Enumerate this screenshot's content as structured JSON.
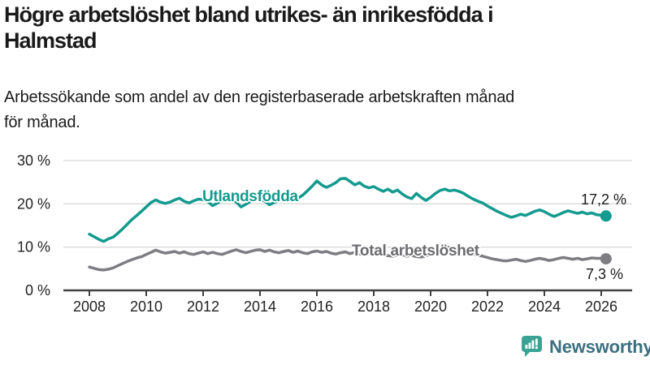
{
  "header": {
    "title_lines": [
      "Högre arbetslöshet bland utrikes- än inrikesfödda i",
      "Halmstad"
    ],
    "subtitle_lines": [
      "Arbetssökande som andel av den registerbaserade arbetskraften månad",
      "för månad."
    ]
  },
  "chart_data": {
    "type": "line",
    "x_start": 2008,
    "x_step_years": 0.16667,
    "x_tick_years": [
      2008,
      2010,
      2012,
      2014,
      2016,
      2018,
      2020,
      2022,
      2024,
      2026
    ],
    "x_tick_labels": [
      "2008",
      "2010",
      "2012",
      "2014",
      "2016",
      "2018",
      "2020",
      "2022",
      "2024",
      "2026"
    ],
    "y_ticks": [
      {
        "value": 0,
        "label": "0 %"
      },
      {
        "value": 10,
        "label": "10 %"
      },
      {
        "value": 20,
        "label": "20 %"
      },
      {
        "value": 30,
        "label": "30 %"
      }
    ],
    "ylim": [
      0,
      32
    ],
    "xlim": [
      2007.1,
      2026.6
    ],
    "grid": true,
    "legend_position": "inline-labels",
    "colors": {
      "grid": "#d9d9d9",
      "axis": "#404040",
      "tick_text": "#222222"
    },
    "series": [
      {
        "name": "Utlandsfödda",
        "color": "#149a8e",
        "label_color": "#149a8e",
        "end_label": "17,2 %",
        "end_value": 17.2,
        "values": [
          13.0,
          12.4,
          11.8,
          11.3,
          11.9,
          12.3,
          13.2,
          14.2,
          15.3,
          16.4,
          17.3,
          18.3,
          19.3,
          20.3,
          20.9,
          20.4,
          20.1,
          20.4,
          20.9,
          21.3,
          20.6,
          20.2,
          20.7,
          21.1,
          21.0,
          20.5,
          19.6,
          20.2,
          20.8,
          21.1,
          21.2,
          20.4,
          19.3,
          19.9,
          20.6,
          21.0,
          21.2,
          20.6,
          19.8,
          20.3,
          20.9,
          21.2,
          21.4,
          20.9,
          21.3,
          22.0,
          23.0,
          24.1,
          25.3,
          24.4,
          23.8,
          24.3,
          24.9,
          25.8,
          25.9,
          25.2,
          24.4,
          24.9,
          24.1,
          23.7,
          24.0,
          23.4,
          22.9,
          23.4,
          22.7,
          23.2,
          22.3,
          21.6,
          21.2,
          22.4,
          21.5,
          20.8,
          21.5,
          22.4,
          23.1,
          23.4,
          23.0,
          23.2,
          22.9,
          22.4,
          21.7,
          21.1,
          20.6,
          20.2,
          19.5,
          18.9,
          18.3,
          17.8,
          17.3,
          16.9,
          17.2,
          17.6,
          17.3,
          17.8,
          18.3,
          18.6,
          18.2,
          17.6,
          17.1,
          17.5,
          18.0,
          18.4,
          18.1,
          17.8,
          18.1,
          17.7,
          17.9,
          17.5,
          17.4,
          17.2
        ]
      },
      {
        "name": "Total arbetslöshet",
        "color": "#7d7d82",
        "label_color": "#6b6b70",
        "end_label": "7,3 %",
        "end_value": 7.3,
        "values": [
          5.4,
          5.1,
          4.8,
          4.7,
          4.9,
          5.2,
          5.7,
          6.2,
          6.7,
          7.1,
          7.5,
          7.8,
          8.3,
          8.8,
          9.3,
          8.9,
          8.6,
          8.8,
          9.0,
          8.6,
          8.9,
          8.5,
          8.3,
          8.6,
          8.9,
          8.5,
          8.8,
          8.5,
          8.3,
          8.7,
          9.1,
          9.4,
          9.0,
          8.7,
          9.0,
          9.3,
          9.4,
          9.0,
          9.3,
          8.9,
          8.7,
          9.0,
          9.2,
          8.8,
          9.1,
          8.7,
          8.5,
          8.9,
          9.1,
          8.8,
          9.0,
          8.6,
          8.4,
          8.7,
          8.9,
          8.5,
          8.8,
          8.4,
          8.2,
          8.5,
          8.6,
          8.2,
          8.4,
          8.0,
          7.9,
          8.2,
          8.3,
          7.9,
          8.1,
          7.8,
          7.7,
          8.0,
          8.2,
          8.9,
          9.7,
          10.1,
          9.9,
          9.6,
          9.6,
          9.2,
          8.8,
          8.4,
          8.1,
          7.9,
          7.6,
          7.3,
          7.1,
          6.9,
          6.8,
          7.0,
          7.2,
          6.9,
          6.7,
          6.9,
          7.2,
          7.4,
          7.2,
          6.9,
          7.1,
          7.4,
          7.6,
          7.4,
          7.2,
          7.4,
          7.1,
          7.3,
          7.5,
          7.4,
          7.4,
          7.3
        ]
      }
    ]
  },
  "branding": {
    "name": "Newsworthy",
    "icon_color": "#3aa394",
    "text_color": "#3b7080"
  }
}
